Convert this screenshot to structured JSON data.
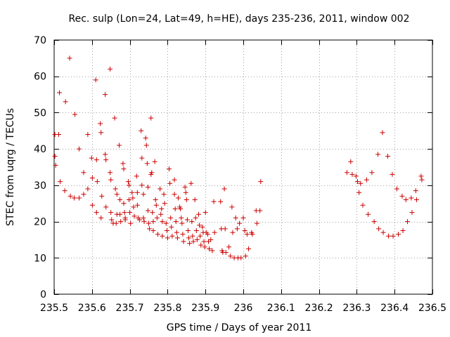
{
  "chart_data": {
    "type": "scatter",
    "title": "Rec. sulp (Lon=24, Lat=49, h=HE), days 235-236, 2011, window 002",
    "xlabel": "GPS time / Days of year 2011",
    "ylabel": "STEC from uqrg / TECUs",
    "xlim": [
      235.5,
      236.5
    ],
    "ylim": [
      0,
      70
    ],
    "xticks": [
      235.5,
      235.6,
      235.7,
      235.8,
      235.9,
      236.0,
      236.1,
      236.2,
      236.3,
      236.4,
      236.5
    ],
    "xtick_labels": [
      "235.5",
      "235.6",
      "235.7",
      "235.8",
      "235.9",
      "236",
      "236.1",
      "236.2",
      "236.3",
      "236.4",
      "236.5"
    ],
    "yticks": [
      0,
      10,
      20,
      30,
      40,
      50,
      60,
      70
    ],
    "ytick_labels": [
      "0",
      "10",
      "20",
      "30",
      "40",
      "50",
      "60",
      "70"
    ],
    "grid": true,
    "marker": "+",
    "color": "#cc0000",
    "series": [
      {
        "name": "STEC",
        "points": [
          [
            235.502,
            44.0
          ],
          [
            235.502,
            38.0
          ],
          [
            235.504,
            35.5
          ],
          [
            235.512,
            44.0
          ],
          [
            235.514,
            55.5
          ],
          [
            235.516,
            31.0
          ],
          [
            235.528,
            28.5
          ],
          [
            235.53,
            53.0
          ],
          [
            235.541,
            65.0
          ],
          [
            235.543,
            27.0
          ],
          [
            235.553,
            26.5
          ],
          [
            235.555,
            49.5
          ],
          [
            235.566,
            40.0
          ],
          [
            235.566,
            26.5
          ],
          [
            235.578,
            27.5
          ],
          [
            235.578,
            33.5
          ],
          [
            235.589,
            44.0
          ],
          [
            235.589,
            29.0
          ],
          [
            235.599,
            37.5
          ],
          [
            235.601,
            24.5
          ],
          [
            235.601,
            32.0
          ],
          [
            235.61,
            59.0
          ],
          [
            235.612,
            37.0
          ],
          [
            235.612,
            22.5
          ],
          [
            235.614,
            31.0
          ],
          [
            235.622,
            47.0
          ],
          [
            235.624,
            44.5
          ],
          [
            235.624,
            21.0
          ],
          [
            235.626,
            27.0
          ],
          [
            235.635,
            55.0
          ],
          [
            235.635,
            38.5
          ],
          [
            235.637,
            37.0
          ],
          [
            235.637,
            24.0
          ],
          [
            235.648,
            62.0
          ],
          [
            235.648,
            33.5
          ],
          [
            235.65,
            31.5
          ],
          [
            235.65,
            22.5
          ],
          [
            235.652,
            20.5
          ],
          [
            235.656,
            19.5
          ],
          [
            235.66,
            48.5
          ],
          [
            235.662,
            29.0
          ],
          [
            235.664,
            19.5
          ],
          [
            235.666,
            27.5
          ],
          [
            235.666,
            22.0
          ],
          [
            235.672,
            41.0
          ],
          [
            235.674,
            26.0
          ],
          [
            235.674,
            22.0
          ],
          [
            235.676,
            20.0
          ],
          [
            235.682,
            36.0
          ],
          [
            235.684,
            34.5
          ],
          [
            235.684,
            25.0
          ],
          [
            235.686,
            22.5
          ],
          [
            235.688,
            21.0
          ],
          [
            235.688,
            20.5
          ],
          [
            235.696,
            31.0
          ],
          [
            235.698,
            30.0
          ],
          [
            235.698,
            26.0
          ],
          [
            235.7,
            22.5
          ],
          [
            235.702,
            19.5
          ],
          [
            235.706,
            28.0
          ],
          [
            235.708,
            26.5
          ],
          [
            235.71,
            24.0
          ],
          [
            235.712,
            21.5
          ],
          [
            235.718,
            32.5
          ],
          [
            235.72,
            28.0
          ],
          [
            235.72,
            24.5
          ],
          [
            235.722,
            21.0
          ],
          [
            235.726,
            20.5
          ],
          [
            235.73,
            45.0
          ],
          [
            235.732,
            37.5
          ],
          [
            235.732,
            30.0
          ],
          [
            235.736,
            27.5
          ],
          [
            235.736,
            21.0
          ],
          [
            235.738,
            20.0
          ],
          [
            235.742,
            43.0
          ],
          [
            235.744,
            41.0
          ],
          [
            235.746,
            36.0
          ],
          [
            235.748,
            29.5
          ],
          [
            235.748,
            23.0
          ],
          [
            235.75,
            19.5
          ],
          [
            235.752,
            18.0
          ],
          [
            235.756,
            48.5
          ],
          [
            235.756,
            33.0
          ],
          [
            235.758,
            33.5
          ],
          [
            235.76,
            22.5
          ],
          [
            235.762,
            20.0
          ],
          [
            235.762,
            17.5
          ],
          [
            235.766,
            36.5
          ],
          [
            235.768,
            26.0
          ],
          [
            235.77,
            24.5
          ],
          [
            235.772,
            21.0
          ],
          [
            235.774,
            16.5
          ],
          [
            235.78,
            29.0
          ],
          [
            235.782,
            22.0
          ],
          [
            235.784,
            23.5
          ],
          [
            235.786,
            20.0
          ],
          [
            235.786,
            16.0
          ],
          [
            235.79,
            27.5
          ],
          [
            235.792,
            25.0
          ],
          [
            235.796,
            19.5
          ],
          [
            235.798,
            17.5
          ],
          [
            235.8,
            15.5
          ],
          [
            235.804,
            34.5
          ],
          [
            235.806,
            30.5
          ],
          [
            235.808,
            21.0
          ],
          [
            235.81,
            18.5
          ],
          [
            235.812,
            16.0
          ],
          [
            235.818,
            31.5
          ],
          [
            235.818,
            27.5
          ],
          [
            235.82,
            23.5
          ],
          [
            235.822,
            20.0
          ],
          [
            235.824,
            17.0
          ],
          [
            235.826,
            15.5
          ],
          [
            235.828,
            26.5
          ],
          [
            235.832,
            24.0
          ],
          [
            235.834,
            23.5
          ],
          [
            235.836,
            21.0
          ],
          [
            235.838,
            19.5
          ],
          [
            235.84,
            16.5
          ],
          [
            235.842,
            14.5
          ],
          [
            235.846,
            29.5
          ],
          [
            235.848,
            28.0
          ],
          [
            235.85,
            26.0
          ],
          [
            235.852,
            20.5
          ],
          [
            235.854,
            17.5
          ],
          [
            235.856,
            15.5
          ],
          [
            235.858,
            14.0
          ],
          [
            235.862,
            30.5
          ],
          [
            235.864,
            20.0
          ],
          [
            235.866,
            16.0
          ],
          [
            235.868,
            14.5
          ],
          [
            235.872,
            26.0
          ],
          [
            235.874,
            21.0
          ],
          [
            235.876,
            17.5
          ],
          [
            235.878,
            15.0
          ],
          [
            235.882,
            22.0
          ],
          [
            235.884,
            19.0
          ],
          [
            235.886,
            16.0
          ],
          [
            235.888,
            13.5
          ],
          [
            235.892,
            18.5
          ],
          [
            235.894,
            17.0
          ],
          [
            235.896,
            14.5
          ],
          [
            235.898,
            13.0
          ],
          [
            235.9,
            22.5
          ],
          [
            235.902,
            17.0
          ],
          [
            235.906,
            16.5
          ],
          [
            235.908,
            14.5
          ],
          [
            235.91,
            12.5
          ],
          [
            235.914,
            15.0
          ],
          [
            235.918,
            12.0
          ],
          [
            235.922,
            25.5
          ],
          [
            235.924,
            17.0
          ],
          [
            235.94,
            25.5
          ],
          [
            235.942,
            18.0
          ],
          [
            235.944,
            12.0
          ],
          [
            235.946,
            11.5
          ],
          [
            235.95,
            29.0
          ],
          [
            235.952,
            18.0
          ],
          [
            235.954,
            11.5
          ],
          [
            235.962,
            13.0
          ],
          [
            235.966,
            10.5
          ],
          [
            235.97,
            24.0
          ],
          [
            235.972,
            17.0
          ],
          [
            235.976,
            10.0
          ],
          [
            235.98,
            21.0
          ],
          [
            235.984,
            18.0
          ],
          [
            235.986,
            10.0
          ],
          [
            235.99,
            19.5
          ],
          [
            235.994,
            10.0
          ],
          [
            236.0,
            21.0
          ],
          [
            236.004,
            17.5
          ],
          [
            236.006,
            10.5
          ],
          [
            236.01,
            16.5
          ],
          [
            236.014,
            12.5
          ],
          [
            236.022,
            17.0
          ],
          [
            236.024,
            16.5
          ],
          [
            236.034,
            23.0
          ],
          [
            236.036,
            19.5
          ],
          [
            236.044,
            23.0
          ],
          [
            236.046,
            31.0
          ],
          [
            236.274,
            33.5
          ],
          [
            236.284,
            36.5
          ],
          [
            236.288,
            33.0
          ],
          [
            236.298,
            32.5
          ],
          [
            236.302,
            31.0
          ],
          [
            236.306,
            28.0
          ],
          [
            236.31,
            30.5
          ],
          [
            236.316,
            24.5
          ],
          [
            236.326,
            31.5
          ],
          [
            236.33,
            22.0
          ],
          [
            236.34,
            33.5
          ],
          [
            236.346,
            20.0
          ],
          [
            236.356,
            38.5
          ],
          [
            236.358,
            18.0
          ],
          [
            236.368,
            44.5
          ],
          [
            236.37,
            17.0
          ],
          [
            236.382,
            38.0
          ],
          [
            236.384,
            16.0
          ],
          [
            236.394,
            33.0
          ],
          [
            236.396,
            16.0
          ],
          [
            236.406,
            29.0
          ],
          [
            236.41,
            16.5
          ],
          [
            236.42,
            27.0
          ],
          [
            236.422,
            17.5
          ],
          [
            236.43,
            26.0
          ],
          [
            236.434,
            20.0
          ],
          [
            236.444,
            26.5
          ],
          [
            236.446,
            22.5
          ],
          [
            236.456,
            28.5
          ],
          [
            236.458,
            26.0
          ],
          [
            236.47,
            32.5
          ],
          [
            236.472,
            31.5
          ]
        ]
      }
    ]
  }
}
